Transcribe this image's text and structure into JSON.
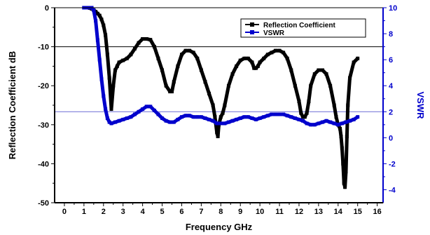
{
  "chart_data": {
    "type": "line",
    "xlabel": "Frequency GHz",
    "ylabel_left": "Reflection Coefficient dB",
    "ylabel_right": "VSWR",
    "xlim": [
      -0.5,
      16.3
    ],
    "ylim_left": [
      -50,
      0
    ],
    "ylim_right": [
      -5,
      10
    ],
    "x_ticks": [
      "0",
      "1",
      "2",
      "3",
      "4",
      "5",
      "6",
      "7",
      "8",
      "9",
      "10",
      "11",
      "12",
      "13",
      "14",
      "15",
      "16"
    ],
    "y_ticks_left": [
      "0",
      "-10",
      "-20",
      "-30",
      "-40",
      "-50"
    ],
    "y_ticks_right": [
      "10",
      "8",
      "6",
      "4",
      "2",
      "0",
      "-2",
      "-4"
    ],
    "reference_lines": {
      "left_y": -10,
      "right_y": 2
    },
    "legend_position": "top-right",
    "colors": {
      "reflection": "#000000",
      "vswr": "#0000cc",
      "ref_line_left": "#000000",
      "ref_line_right": "#6b6bd6"
    },
    "series": [
      {
        "name": "Reflection Coefficient",
        "axis": "left",
        "marker": "square",
        "x": [
          1.0,
          1.1,
          1.2,
          1.3,
          1.4,
          1.5,
          1.6,
          1.7,
          1.8,
          1.9,
          2.0,
          2.1,
          2.2,
          2.3,
          2.4,
          2.5,
          2.6,
          2.7,
          2.8,
          3.0,
          3.2,
          3.4,
          3.6,
          3.8,
          4.0,
          4.2,
          4.4,
          4.6,
          4.8,
          5.0,
          5.2,
          5.4,
          5.5,
          5.6,
          5.8,
          6.0,
          6.2,
          6.4,
          6.6,
          6.8,
          7.0,
          7.2,
          7.4,
          7.6,
          7.7,
          7.8,
          7.85,
          7.9,
          8.0,
          8.1,
          8.2,
          8.4,
          8.6,
          8.8,
          9.0,
          9.2,
          9.4,
          9.6,
          9.7,
          9.8,
          9.9,
          10.0,
          10.2,
          10.4,
          10.6,
          10.8,
          11.0,
          11.2,
          11.4,
          11.6,
          11.8,
          12.0,
          12.1,
          12.2,
          12.3,
          12.4,
          12.5,
          12.6,
          12.8,
          13.0,
          13.2,
          13.4,
          13.6,
          13.8,
          13.9,
          14.0,
          14.1,
          14.15,
          14.2,
          14.25,
          14.3,
          14.35,
          14.4,
          14.45,
          14.5,
          14.6,
          14.8,
          15.0
        ],
        "y": [
          0,
          0,
          0,
          -0.1,
          -0.3,
          -0.6,
          -1,
          -1.5,
          -2,
          -3,
          -4.5,
          -7,
          -12,
          -18,
          -26,
          -20,
          -16,
          -15,
          -14,
          -13.5,
          -13,
          -12,
          -10.5,
          -9,
          -8,
          -8,
          -8.2,
          -10,
          -13,
          -16,
          -20,
          -21.5,
          -21.5,
          -19,
          -15,
          -12,
          -11,
          -11,
          -11.5,
          -13,
          -16,
          -19,
          -22,
          -25,
          -28,
          -32,
          -33,
          -30,
          -28,
          -27,
          -25,
          -20,
          -17,
          -15,
          -13.5,
          -13,
          -13,
          -14,
          -15.5,
          -15.5,
          -15,
          -14,
          -13,
          -12,
          -11.5,
          -11,
          -11,
          -11.5,
          -13,
          -16,
          -20,
          -24,
          -27,
          -28,
          -28,
          -27,
          -24,
          -20,
          -17,
          -16,
          -16,
          -17,
          -20,
          -25,
          -28,
          -30,
          -31,
          -33,
          -36,
          -40,
          -45,
          -46,
          -42,
          -33,
          -25,
          -18,
          -14,
          -13
        ]
      },
      {
        "name": "VSWR",
        "axis": "right",
        "marker": "square",
        "x": [
          1.0,
          1.2,
          1.4,
          1.5,
          1.6,
          1.7,
          1.8,
          1.9,
          2.0,
          2.1,
          2.2,
          2.3,
          2.4,
          2.6,
          2.8,
          3.0,
          3.2,
          3.4,
          3.6,
          3.8,
          4.0,
          4.2,
          4.4,
          4.6,
          4.8,
          5.0,
          5.2,
          5.4,
          5.6,
          5.8,
          6.0,
          6.2,
          6.4,
          6.6,
          6.8,
          7.0,
          7.2,
          7.4,
          7.6,
          7.8,
          8.0,
          8.2,
          8.4,
          8.6,
          8.8,
          9.0,
          9.2,
          9.4,
          9.6,
          9.8,
          10.0,
          10.2,
          10.4,
          10.6,
          10.8,
          11.0,
          11.2,
          11.4,
          11.6,
          11.8,
          12.0,
          12.2,
          12.4,
          12.6,
          12.8,
          13.0,
          13.2,
          13.4,
          13.6,
          13.8,
          14.0,
          14.2,
          14.4,
          14.6,
          14.8,
          15.0
        ],
        "y": [
          10,
          10,
          10,
          9.8,
          9,
          7.5,
          6,
          4.5,
          3.2,
          2.2,
          1.5,
          1.2,
          1.1,
          1.2,
          1.3,
          1.4,
          1.5,
          1.6,
          1.8,
          2.0,
          2.2,
          2.4,
          2.4,
          2.1,
          1.8,
          1.5,
          1.3,
          1.2,
          1.2,
          1.4,
          1.6,
          1.7,
          1.7,
          1.6,
          1.6,
          1.6,
          1.5,
          1.4,
          1.3,
          1.1,
          1.1,
          1.1,
          1.2,
          1.3,
          1.4,
          1.5,
          1.6,
          1.6,
          1.5,
          1.4,
          1.5,
          1.6,
          1.7,
          1.8,
          1.8,
          1.8,
          1.8,
          1.7,
          1.6,
          1.5,
          1.4,
          1.3,
          1.1,
          1.0,
          1.0,
          1.1,
          1.2,
          1.3,
          1.2,
          1.1,
          1.0,
          1.1,
          1.2,
          1.3,
          1.4,
          1.6
        ]
      }
    ]
  }
}
